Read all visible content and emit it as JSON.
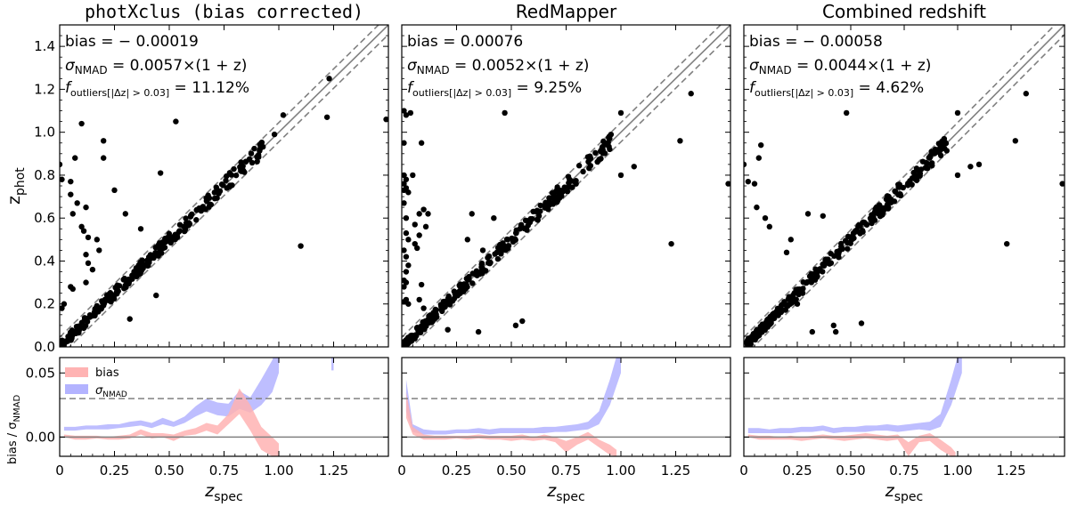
{
  "figure": {
    "ylabel_top": "z",
    "ylabel_top_sub": "phot",
    "ylabel_bottom": "bias / σ",
    "ylabel_bottom_sub": "NMAD",
    "xlabel": "z",
    "xlabel_sub": "spec",
    "legend": {
      "bias_label": "bias",
      "sigma_label": "σ",
      "sigma_sub": "NMAD",
      "bias_color": "#ffb3b3",
      "sigma_color": "#b3b3ff"
    },
    "top_ticks": [
      "0.0",
      "0.2",
      "0.4",
      "0.6",
      "0.8",
      "1.0",
      "1.2",
      "1.4"
    ],
    "bottom_ticks": [
      "0.00",
      "0.05"
    ],
    "x_ticks": [
      "0",
      "0.25",
      "0.50",
      "0.75",
      "1.00",
      "1.25"
    ]
  },
  "chart_data": [
    {
      "type": "scatter",
      "title": "photXclus (bias corrected)",
      "title_mono": "photXclus",
      "title_rest": " (bias corrected)",
      "stats": {
        "bias_label": "bias",
        "bias_value": "= − 0.00019",
        "sigma_label": "σ",
        "sigma_sub": "NMAD",
        "sigma_value": "= 0.0057×(1 + z)",
        "fout_label": "f",
        "fout_sub": "outliers[|Δz| > 0.03]",
        "fout_value": "= 11.12%"
      },
      "xlim": [
        0,
        1.5
      ],
      "ylim": [
        0,
        1.5
      ],
      "outliers": [
        [
          0.0,
          0.85
        ],
        [
          0.01,
          0.78
        ],
        [
          0.02,
          0.2
        ],
        [
          0.01,
          0.18
        ],
        [
          0.05,
          0.77
        ],
        [
          0.05,
          0.71
        ],
        [
          0.07,
          0.88
        ],
        [
          0.06,
          0.62
        ],
        [
          0.08,
          0.67
        ],
        [
          0.1,
          1.04
        ],
        [
          0.1,
          0.56
        ],
        [
          0.11,
          0.54
        ],
        [
          0.12,
          0.65
        ],
        [
          0.13,
          0.51
        ],
        [
          0.12,
          0.43
        ],
        [
          0.13,
          0.39
        ],
        [
          0.15,
          0.36
        ],
        [
          0.12,
          0.3
        ],
        [
          0.05,
          0.28
        ],
        [
          0.06,
          0.27
        ],
        [
          0.17,
          0.5
        ],
        [
          0.18,
          0.45
        ],
        [
          0.2,
          0.88
        ],
        [
          0.2,
          0.96
        ],
        [
          0.25,
          0.73
        ],
        [
          0.3,
          0.62
        ],
        [
          0.44,
          0.24
        ],
        [
          0.46,
          0.81
        ],
        [
          0.53,
          1.05
        ],
        [
          0.32,
          0.13
        ],
        [
          0.37,
          0.55
        ],
        [
          1.1,
          0.47
        ],
        [
          1.22,
          1.07
        ],
        [
          1.23,
          1.25
        ],
        [
          1.49,
          1.06
        ],
        [
          1.02,
          1.08
        ],
        [
          0.98,
          0.99
        ]
      ],
      "bias_band": [
        [
          0.02,
          0.0,
          0.002
        ],
        [
          0.07,
          -0.002,
          0.001
        ],
        [
          0.12,
          -0.002,
          0.001
        ],
        [
          0.17,
          -0.001,
          0.001
        ],
        [
          0.22,
          -0.002,
          0.0
        ],
        [
          0.27,
          -0.002,
          0.001
        ],
        [
          0.32,
          -0.001,
          0.002
        ],
        [
          0.37,
          0.002,
          0.006
        ],
        [
          0.42,
          -0.001,
          0.003
        ],
        [
          0.47,
          0.0,
          0.003
        ],
        [
          0.52,
          -0.003,
          0.002
        ],
        [
          0.57,
          0.001,
          0.005
        ],
        [
          0.62,
          0.002,
          0.007
        ],
        [
          0.67,
          0.005,
          0.011
        ],
        [
          0.72,
          0.002,
          0.009
        ],
        [
          0.77,
          0.01,
          0.018
        ],
        [
          0.82,
          0.018,
          0.038
        ],
        [
          0.87,
          0.005,
          0.025
        ],
        [
          0.92,
          -0.01,
          0.008
        ],
        [
          0.97,
          -0.015,
          0.0
        ],
        [
          1.0,
          -0.015,
          -0.005
        ]
      ],
      "sigma_band": [
        [
          0.02,
          0.005,
          0.008
        ],
        [
          0.07,
          0.005,
          0.008
        ],
        [
          0.12,
          0.006,
          0.009
        ],
        [
          0.17,
          0.006,
          0.009
        ],
        [
          0.22,
          0.006,
          0.01
        ],
        [
          0.27,
          0.007,
          0.01
        ],
        [
          0.32,
          0.008,
          0.012
        ],
        [
          0.37,
          0.009,
          0.013
        ],
        [
          0.42,
          0.007,
          0.011
        ],
        [
          0.47,
          0.01,
          0.015
        ],
        [
          0.52,
          0.008,
          0.012
        ],
        [
          0.57,
          0.011,
          0.016
        ],
        [
          0.62,
          0.016,
          0.024
        ],
        [
          0.67,
          0.02,
          0.03
        ],
        [
          0.72,
          0.017,
          0.027
        ],
        [
          0.77,
          0.016,
          0.026
        ],
        [
          0.82,
          0.022,
          0.036
        ],
        [
          0.87,
          0.019,
          0.031
        ],
        [
          0.92,
          0.025,
          0.045
        ],
        [
          0.97,
          0.035,
          0.06
        ],
        [
          1.0,
          0.05,
          0.075
        ]
      ],
      "sigma_tail": [
        [
          1.24,
          0.052,
          0.075
        ],
        [
          1.25,
          0.052,
          0.075
        ]
      ]
    },
    {
      "type": "scatter",
      "title": "RedMapper",
      "title_mono": "",
      "title_rest": "RedMapper",
      "stats": {
        "bias_label": "bias",
        "bias_value": "= 0.00076",
        "sigma_label": "σ",
        "sigma_sub": "NMAD",
        "sigma_value": "= 0.0052×(1 + z)",
        "fout_label": "f",
        "fout_sub": "outliers[|Δz| > 0.03]",
        "fout_value": "= 9.25%"
      },
      "xlim": [
        0,
        1.5
      ],
      "ylim": [
        0,
        1.5
      ],
      "outliers": [
        [
          0.01,
          1.1
        ],
        [
          0.02,
          1.08
        ],
        [
          0.01,
          0.95
        ],
        [
          0.01,
          0.8
        ],
        [
          0.02,
          0.78
        ],
        [
          0.01,
          0.76
        ],
        [
          0.02,
          0.74
        ],
        [
          0.01,
          0.73
        ],
        [
          0.03,
          0.72
        ],
        [
          0.01,
          0.67
        ],
        [
          0.02,
          0.6
        ],
        [
          0.02,
          0.53
        ],
        [
          0.03,
          0.5
        ],
        [
          0.01,
          0.45
        ],
        [
          0.02,
          0.42
        ],
        [
          0.03,
          0.38
        ],
        [
          0.02,
          0.35
        ],
        [
          0.01,
          0.31
        ],
        [
          0.02,
          0.3
        ],
        [
          0.01,
          0.28
        ],
        [
          0.02,
          0.22
        ],
        [
          0.01,
          0.21
        ],
        [
          0.03,
          0.2
        ],
        [
          0.04,
          1.09
        ],
        [
          0.05,
          0.8
        ],
        [
          0.06,
          0.48
        ],
        [
          0.07,
          0.46
        ],
        [
          0.08,
          0.62
        ],
        [
          0.06,
          0.57
        ],
        [
          0.09,
          0.95
        ],
        [
          0.08,
          0.52
        ],
        [
          0.1,
          0.64
        ],
        [
          0.12,
          0.62
        ],
        [
          0.11,
          0.56
        ],
        [
          0.09,
          0.29
        ],
        [
          0.08,
          0.22
        ],
        [
          0.1,
          0.18
        ],
        [
          0.13,
          0.14
        ],
        [
          0.15,
          0.13
        ],
        [
          0.35,
          0.07
        ],
        [
          0.42,
          0.6
        ],
        [
          0.37,
          0.45
        ],
        [
          0.47,
          1.09
        ],
        [
          0.55,
          0.12
        ],
        [
          0.52,
          0.1
        ],
        [
          0.32,
          0.62
        ],
        [
          0.3,
          0.5
        ],
        [
          1.0,
          0.8
        ],
        [
          1.06,
          0.84
        ],
        [
          1.23,
          0.48
        ],
        [
          1.27,
          0.96
        ],
        [
          1.32,
          1.18
        ],
        [
          1.49,
          0.76
        ],
        [
          1.0,
          1.09
        ],
        [
          0.21,
          0.08
        ]
      ],
      "bias_band": [
        [
          0.02,
          0.015,
          0.035
        ],
        [
          0.05,
          0.002,
          0.008
        ],
        [
          0.1,
          -0.002,
          0.002
        ],
        [
          0.15,
          -0.002,
          0.001
        ],
        [
          0.2,
          -0.002,
          0.001
        ],
        [
          0.25,
          -0.001,
          0.001
        ],
        [
          0.3,
          -0.002,
          0.001
        ],
        [
          0.35,
          -0.001,
          0.002
        ],
        [
          0.4,
          -0.002,
          0.001
        ],
        [
          0.45,
          -0.002,
          0.001
        ],
        [
          0.5,
          -0.003,
          0.001
        ],
        [
          0.55,
          -0.002,
          0.002
        ],
        [
          0.6,
          -0.003,
          0.0
        ],
        [
          0.65,
          -0.002,
          0.002
        ],
        [
          0.7,
          -0.004,
          0.0
        ],
        [
          0.75,
          -0.012,
          -0.003
        ],
        [
          0.8,
          -0.006,
          0.0
        ],
        [
          0.85,
          -0.002,
          0.004
        ],
        [
          0.9,
          -0.008,
          -0.002
        ],
        [
          0.95,
          -0.014,
          -0.006
        ],
        [
          0.98,
          -0.015,
          -0.01
        ]
      ],
      "sigma_band": [
        [
          0.02,
          0.02,
          0.045
        ],
        [
          0.05,
          0.004,
          0.01
        ],
        [
          0.1,
          0.002,
          0.006
        ],
        [
          0.15,
          0.002,
          0.005
        ],
        [
          0.2,
          0.002,
          0.005
        ],
        [
          0.25,
          0.003,
          0.006
        ],
        [
          0.3,
          0.003,
          0.006
        ],
        [
          0.35,
          0.003,
          0.007
        ],
        [
          0.4,
          0.002,
          0.006
        ],
        [
          0.45,
          0.003,
          0.007
        ],
        [
          0.5,
          0.003,
          0.007
        ],
        [
          0.55,
          0.003,
          0.007
        ],
        [
          0.6,
          0.003,
          0.007
        ],
        [
          0.65,
          0.003,
          0.008
        ],
        [
          0.7,
          0.004,
          0.008
        ],
        [
          0.75,
          0.004,
          0.009
        ],
        [
          0.8,
          0.005,
          0.01
        ],
        [
          0.85,
          0.006,
          0.012
        ],
        [
          0.9,
          0.01,
          0.02
        ],
        [
          0.95,
          0.025,
          0.045
        ],
        [
          1.0,
          0.05,
          0.075
        ]
      ],
      "sigma_tail": []
    },
    {
      "type": "scatter",
      "title": "Combined redshift",
      "title_mono": "",
      "title_rest": "Combined redshift",
      "stats": {
        "bias_label": "bias",
        "bias_value": "= − 0.00058",
        "sigma_label": "σ",
        "sigma_sub": "NMAD",
        "sigma_value": "= 0.0044×(1 + z)",
        "fout_label": "f",
        "fout_sub": "outliers[|Δz| > 0.03]",
        "fout_value": "= 4.62%"
      },
      "xlim": [
        0,
        1.5
      ],
      "ylim": [
        0,
        1.5
      ],
      "outliers": [
        [
          0.0,
          0.85
        ],
        [
          0.02,
          0.77
        ],
        [
          0.05,
          0.76
        ],
        [
          0.06,
          0.65
        ],
        [
          0.08,
          0.94
        ],
        [
          0.1,
          0.6
        ],
        [
          0.12,
          0.56
        ],
        [
          0.07,
          0.88
        ],
        [
          0.2,
          0.44
        ],
        [
          0.22,
          0.5
        ],
        [
          0.3,
          0.62
        ],
        [
          0.37,
          0.61
        ],
        [
          0.32,
          0.07
        ],
        [
          0.42,
          0.1
        ],
        [
          0.43,
          0.07
        ],
        [
          0.48,
          1.09
        ],
        [
          0.55,
          0.11
        ],
        [
          0.25,
          0.2
        ],
        [
          0.18,
          0.17
        ],
        [
          1.0,
          0.8
        ],
        [
          1.06,
          0.84
        ],
        [
          1.1,
          0.85
        ],
        [
          1.23,
          0.48
        ],
        [
          1.27,
          0.96
        ],
        [
          1.32,
          1.18
        ],
        [
          1.49,
          0.76
        ],
        [
          1.0,
          1.09
        ]
      ],
      "bias_band": [
        [
          0.02,
          0.0,
          0.002
        ],
        [
          0.07,
          -0.002,
          0.001
        ],
        [
          0.12,
          -0.002,
          0.001
        ],
        [
          0.17,
          -0.002,
          0.0
        ],
        [
          0.22,
          -0.002,
          0.001
        ],
        [
          0.27,
          -0.003,
          0.0
        ],
        [
          0.32,
          -0.002,
          0.001
        ],
        [
          0.37,
          -0.001,
          0.002
        ],
        [
          0.42,
          -0.002,
          0.001
        ],
        [
          0.47,
          -0.003,
          0.001
        ],
        [
          0.52,
          -0.002,
          0.002
        ],
        [
          0.57,
          -0.001,
          0.003
        ],
        [
          0.62,
          -0.002,
          0.002
        ],
        [
          0.67,
          -0.003,
          0.001
        ],
        [
          0.72,
          -0.002,
          0.002
        ],
        [
          0.77,
          -0.015,
          -0.004
        ],
        [
          0.82,
          -0.004,
          0.001
        ],
        [
          0.87,
          -0.003,
          0.003
        ],
        [
          0.92,
          -0.01,
          -0.002
        ],
        [
          0.97,
          -0.015,
          -0.008
        ],
        [
          0.99,
          -0.015,
          -0.012
        ]
      ],
      "sigma_band": [
        [
          0.02,
          0.003,
          0.007
        ],
        [
          0.07,
          0.003,
          0.007
        ],
        [
          0.12,
          0.003,
          0.006
        ],
        [
          0.17,
          0.003,
          0.007
        ],
        [
          0.22,
          0.003,
          0.007
        ],
        [
          0.27,
          0.004,
          0.008
        ],
        [
          0.32,
          0.004,
          0.008
        ],
        [
          0.37,
          0.005,
          0.009
        ],
        [
          0.42,
          0.003,
          0.007
        ],
        [
          0.47,
          0.004,
          0.008
        ],
        [
          0.52,
          0.004,
          0.008
        ],
        [
          0.57,
          0.004,
          0.009
        ],
        [
          0.62,
          0.005,
          0.009
        ],
        [
          0.67,
          0.005,
          0.01
        ],
        [
          0.72,
          0.004,
          0.009
        ],
        [
          0.77,
          0.005,
          0.01
        ],
        [
          0.82,
          0.006,
          0.011
        ],
        [
          0.87,
          0.005,
          0.012
        ],
        [
          0.92,
          0.008,
          0.018
        ],
        [
          0.97,
          0.025,
          0.045
        ],
        [
          1.02,
          0.05,
          0.075
        ]
      ],
      "sigma_tail": []
    }
  ]
}
